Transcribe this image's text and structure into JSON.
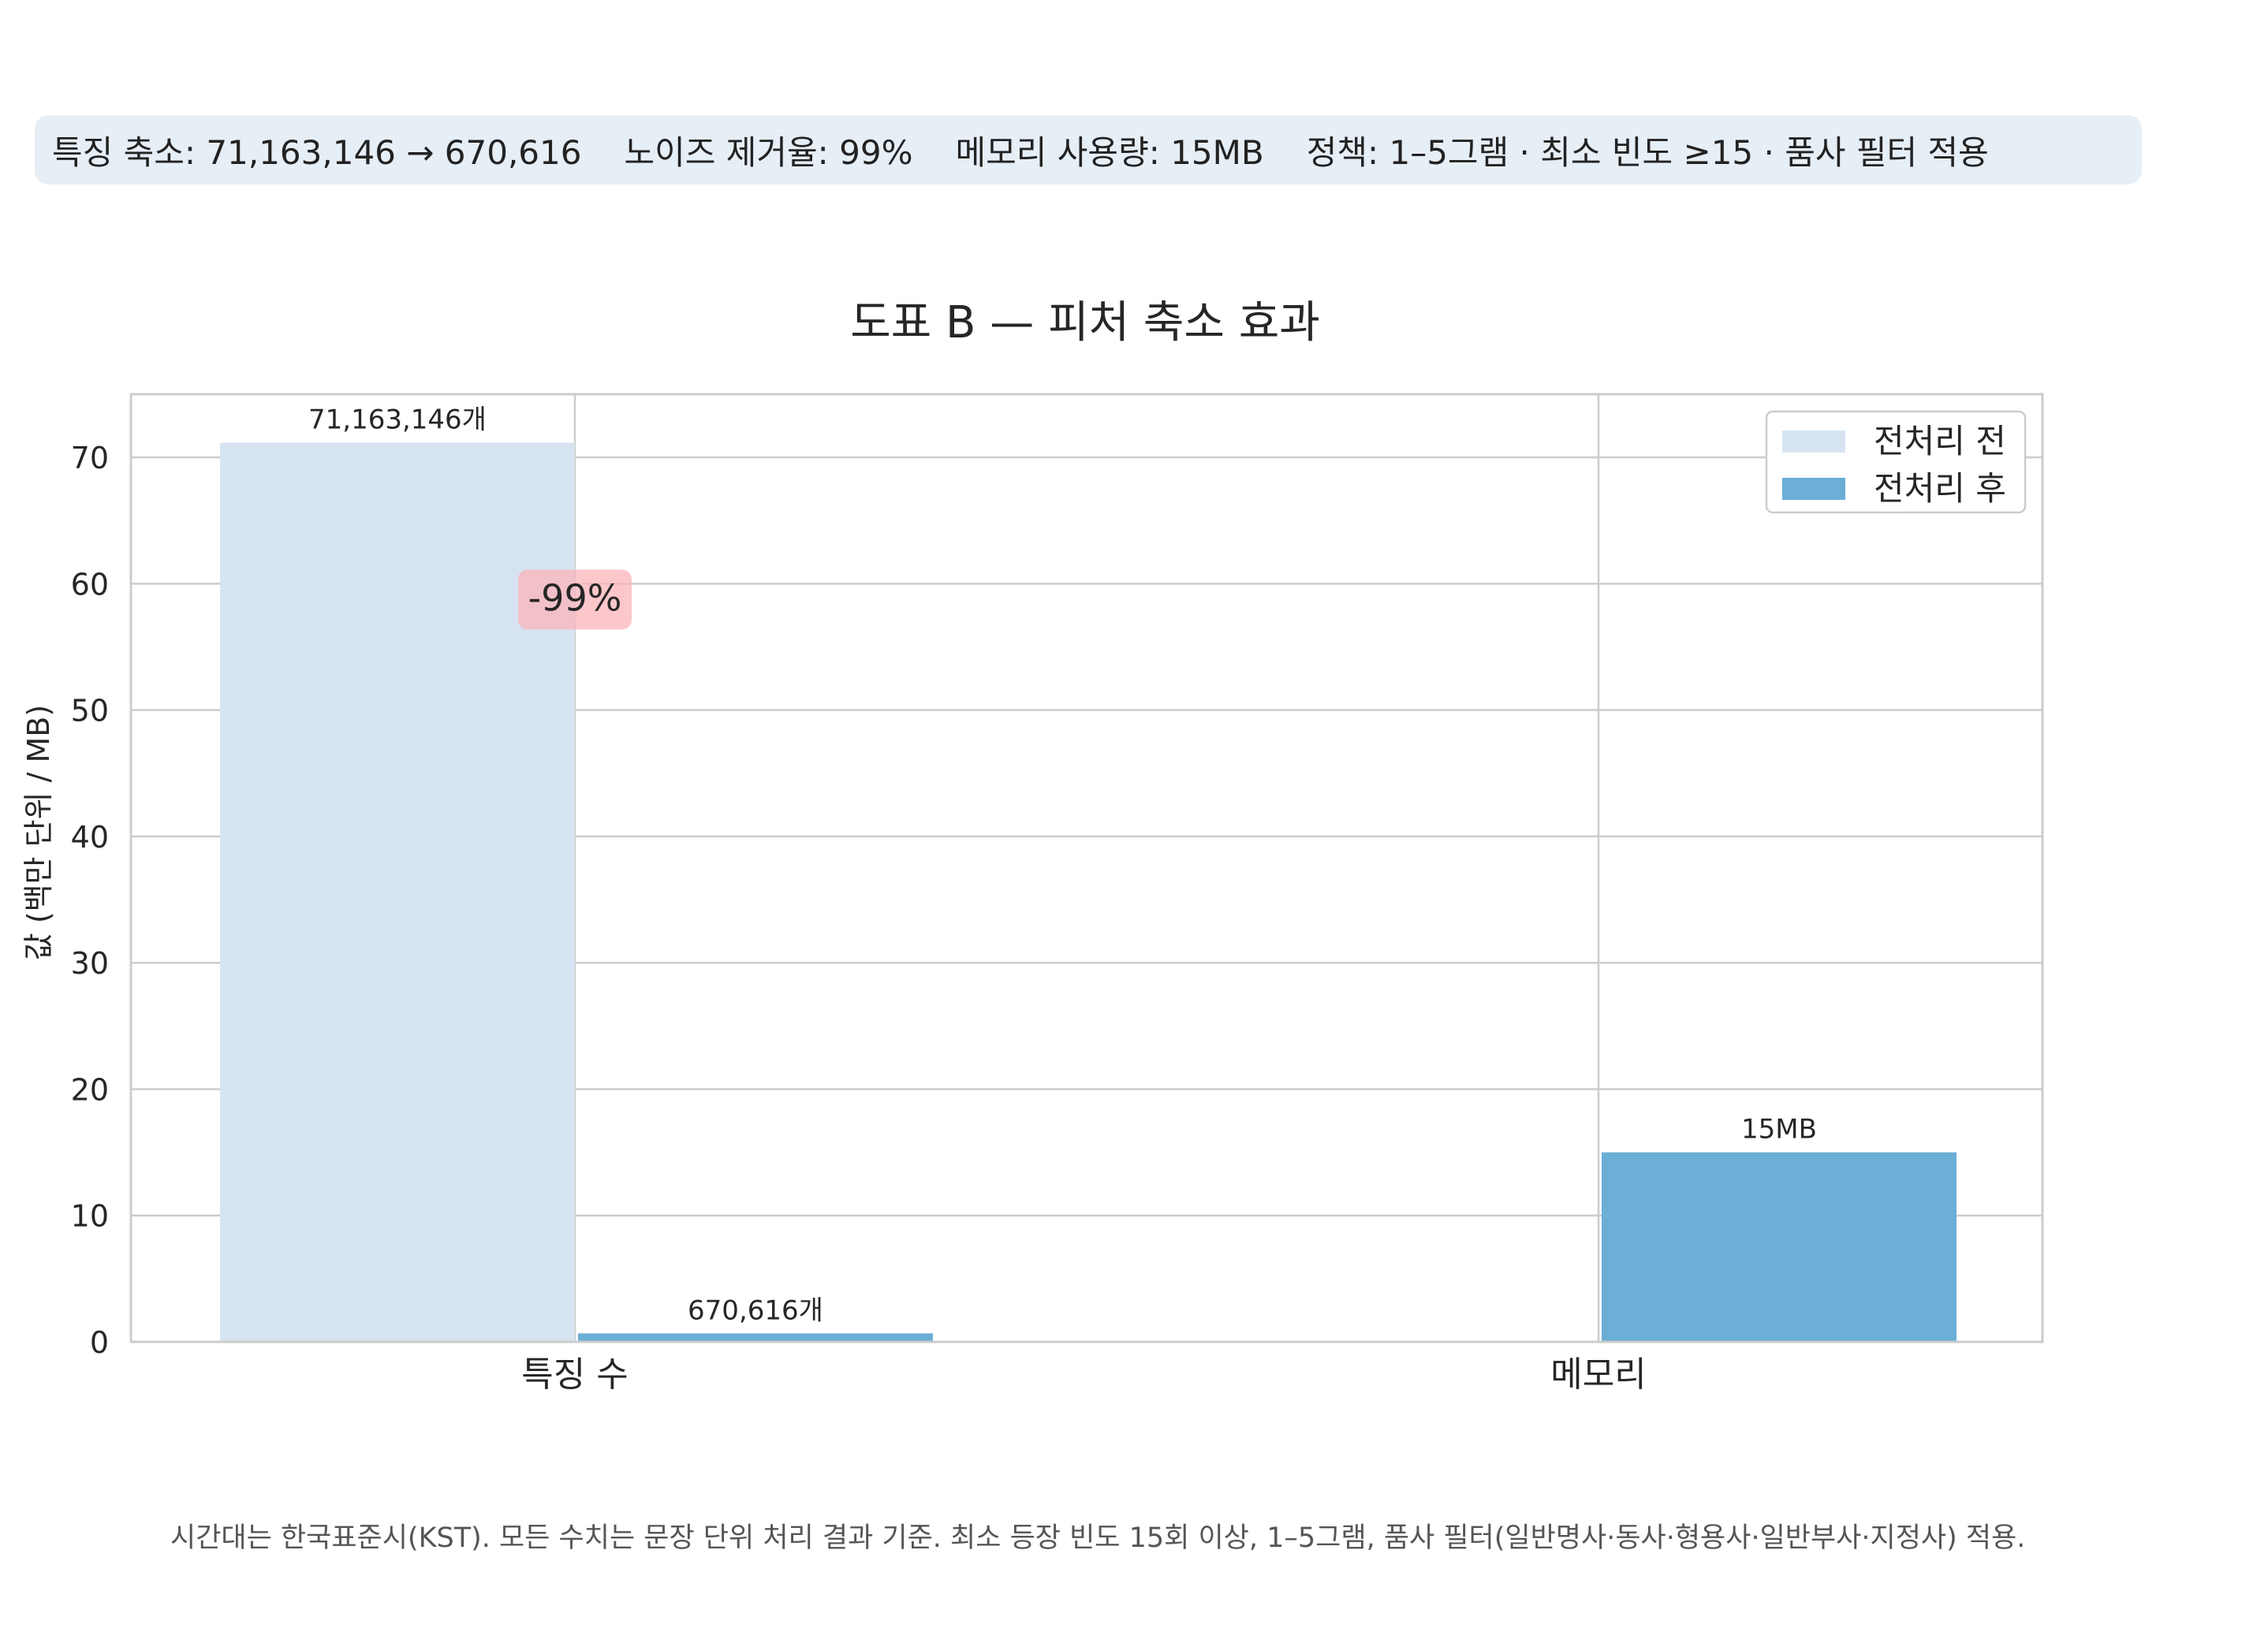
{
  "summary": {
    "reduction": "특징 축소: 71,163,146 → 670,616",
    "noise": "노이즈 제거율: 99%",
    "memory": "메모리 사용량: 15MB",
    "policy": "정책: 1–5그램 · 최소 빈도 ≥15 · 품사 필터 적용"
  },
  "footnote": "시간대는 한국표준시(KST). 모든 수치는 문장 단위 처리 결과 기준. 최소 등장 빈도 15회 이상, 1–5그램, 품사 필터(일반명사·동사·형용사·일반부사·지정사) 적용.",
  "chart_data": {
    "type": "bar",
    "title": "도표 B — 피처 축소 효과",
    "xlabel": "",
    "ylabel": "값 (백만 단위 / MB)",
    "categories": [
      "특징 수",
      "메모리"
    ],
    "ylim": [
      0,
      75
    ],
    "yticks": [
      0,
      10,
      20,
      30,
      40,
      50,
      60,
      70
    ],
    "grid": true,
    "legend_position": "top-right",
    "series": [
      {
        "name": "전처리 전",
        "color": "#d6e4f2",
        "values": [
          71.163146,
          null
        ],
        "labels": [
          "71,163,146개",
          ""
        ]
      },
      {
        "name": "전처리 후",
        "color": "#6baed6",
        "values": [
          0.670616,
          15
        ],
        "labels": [
          "670,616개",
          "15MB"
        ]
      }
    ],
    "annotation": {
      "text": "-99%",
      "category": "특징 수",
      "y": 57,
      "color": "#fbb4b9"
    }
  }
}
